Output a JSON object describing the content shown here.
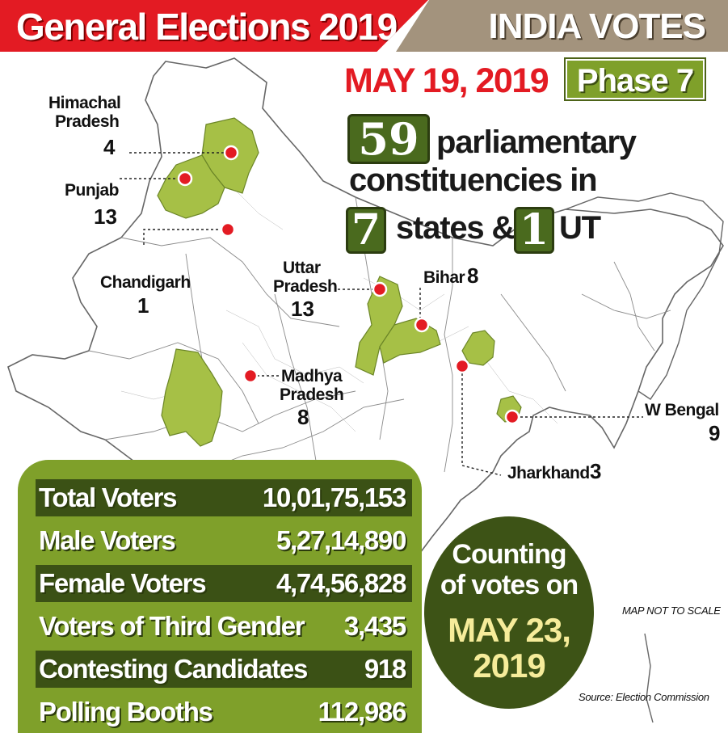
{
  "header": {
    "title": "General Elections 2019",
    "brand": "INDIA VOTES"
  },
  "phase": {
    "date": "MAY 19, 2019",
    "label": "Phase 7"
  },
  "headline": {
    "constituencies_count": "59",
    "line1": "parliamentary",
    "line2": "constituencies in",
    "states_count": "7",
    "states_label": "states &",
    "ut_count": "1",
    "ut_label": "UT"
  },
  "regions": [
    {
      "name_line1": "Himachal",
      "name_line2": "Pradesh",
      "seats": "4"
    },
    {
      "name_line1": "Punjab",
      "name_line2": "",
      "seats": "13"
    },
    {
      "name_line1": "Chandigarh",
      "name_line2": "",
      "seats": "1"
    },
    {
      "name_line1": "Uttar",
      "name_line2": "Pradesh",
      "seats": "13"
    },
    {
      "name_line1": "Bihar",
      "name_line2": "",
      "seats": "8"
    },
    {
      "name_line1": "Madhya",
      "name_line2": "Pradesh",
      "seats": "8"
    },
    {
      "name_line1": "W Bengal",
      "name_line2": "",
      "seats": "9"
    },
    {
      "name_line1": "Jharkhand",
      "name_line2": "",
      "seats": "3"
    }
  ],
  "stats": [
    {
      "label": "Total Voters",
      "value": "10,01,75,153"
    },
    {
      "label": "Male Voters",
      "value": "5,27,14,890"
    },
    {
      "label": "Female Voters",
      "value": "4,74,56,828"
    },
    {
      "label": "Voters of Third Gender",
      "value": "3,435"
    },
    {
      "label": "Contesting Candidates",
      "value": "918"
    },
    {
      "label": "Polling Booths",
      "value": "112,986"
    }
  ],
  "counting": {
    "line1": "Counting",
    "line2": "of votes on",
    "date_line1": "MAY 23,",
    "date_line2": "2019"
  },
  "notes": {
    "scale": "MAP NOT TO SCALE",
    "source": "Source: Election Commission"
  },
  "colors": {
    "red": "#e31b23",
    "highlight_green": "#a6c046",
    "dark_green": "#3d5316",
    "panel_green": "#7fa02a",
    "tan": "#a3937d"
  }
}
